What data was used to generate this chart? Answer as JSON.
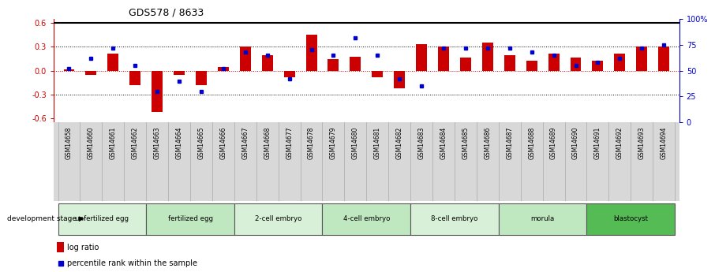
{
  "title": "GDS578 / 8633",
  "samples": [
    "GSM14658",
    "GSM14660",
    "GSM14661",
    "GSM14662",
    "GSM14663",
    "GSM14664",
    "GSM14665",
    "GSM14666",
    "GSM14667",
    "GSM14668",
    "GSM14677",
    "GSM14678",
    "GSM14679",
    "GSM14680",
    "GSM14681",
    "GSM14682",
    "GSM14683",
    "GSM14684",
    "GSM14685",
    "GSM14686",
    "GSM14687",
    "GSM14688",
    "GSM14689",
    "GSM14690",
    "GSM14691",
    "GSM14692",
    "GSM14693",
    "GSM14694"
  ],
  "log_ratio": [
    0.02,
    -0.05,
    0.22,
    -0.18,
    -0.52,
    -0.05,
    -0.18,
    0.05,
    0.3,
    0.2,
    -0.08,
    0.45,
    0.15,
    0.18,
    -0.08,
    -0.22,
    0.33,
    0.3,
    0.17,
    0.35,
    0.2,
    0.13,
    0.22,
    0.17,
    0.13,
    0.22,
    0.3,
    0.3
  ],
  "percentile_rank": [
    52,
    62,
    72,
    55,
    30,
    40,
    30,
    52,
    68,
    65,
    42,
    70,
    65,
    82,
    65,
    42,
    35,
    72,
    72,
    72,
    72,
    68,
    65,
    55,
    58,
    62,
    72,
    75
  ],
  "stage_groups": [
    {
      "label": "unfertilized egg",
      "start": 0,
      "end": 4,
      "color": "#d8f0d8"
    },
    {
      "label": "fertilized egg",
      "start": 4,
      "end": 8,
      "color": "#c0e8c0"
    },
    {
      "label": "2-cell embryo",
      "start": 8,
      "end": 12,
      "color": "#d8f0d8"
    },
    {
      "label": "4-cell embryo",
      "start": 12,
      "end": 16,
      "color": "#c0e8c0"
    },
    {
      "label": "8-cell embryo",
      "start": 16,
      "end": 20,
      "color": "#d8f0d8"
    },
    {
      "label": "morula",
      "start": 20,
      "end": 24,
      "color": "#c0e8c0"
    },
    {
      "label": "blastocyst",
      "start": 24,
      "end": 28,
      "color": "#55bb55"
    }
  ],
  "bar_color": "#cc0000",
  "dot_color": "#0000cc",
  "ylim_left": [
    -0.65,
    0.65
  ],
  "ylim_right": [
    0,
    100
  ],
  "yticks_left": [
    -0.6,
    -0.3,
    0.0,
    0.3,
    0.6
  ],
  "yticks_right": [
    0,
    25,
    50,
    75,
    100
  ],
  "hlines_dotted": [
    -0.3,
    0.0,
    0.3
  ],
  "bar_color_0line": "#cc0000",
  "background_color": "#ffffff",
  "xtick_bg": "#d8d8d8",
  "bar_width": 0.5,
  "fig_width": 9.06,
  "fig_height": 3.45,
  "dpi": 100
}
